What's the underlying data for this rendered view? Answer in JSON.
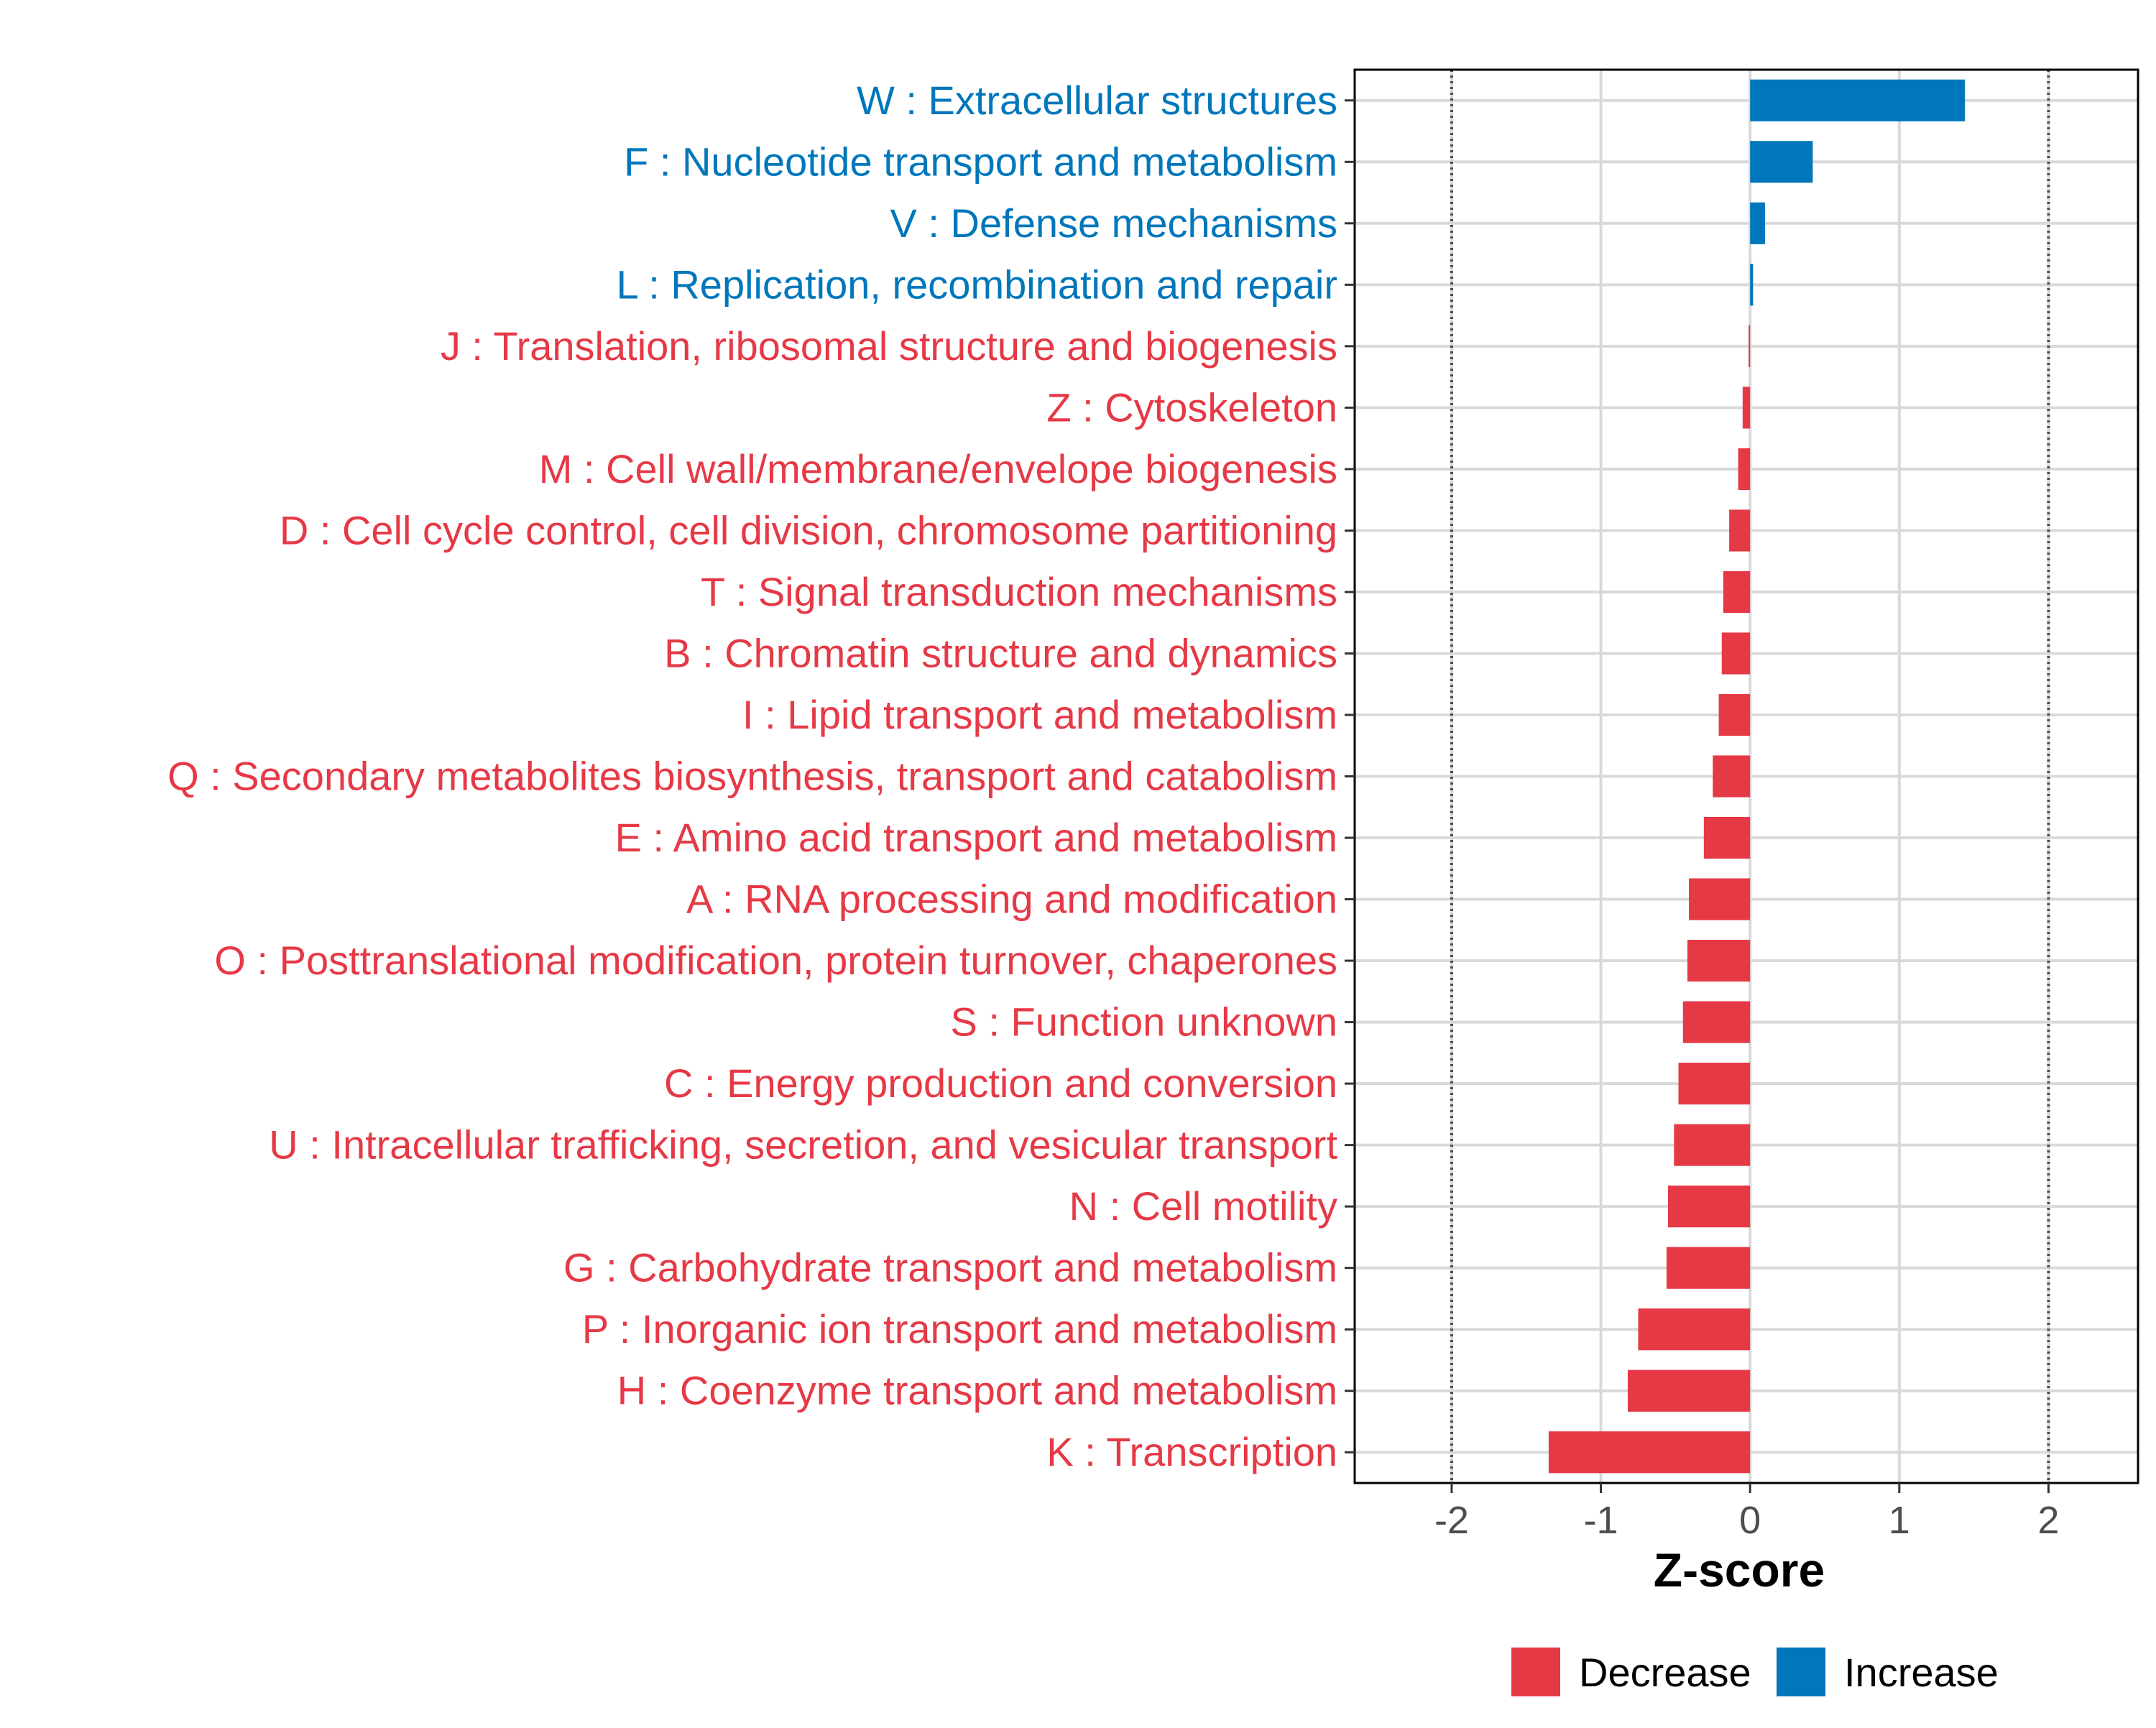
{
  "colors": {
    "decrease": "#E63946",
    "increase": "#0077BB",
    "grid": "#d9d9d9",
    "border": "#000000",
    "reference_line": "#4d4d4d",
    "tick_text": "#4d4d4d"
  },
  "chart_data": {
    "type": "bar",
    "orientation": "horizontal",
    "title": "",
    "xlabel": "Z-score",
    "ylabel": "",
    "xlim": [
      -2.65,
      2.6
    ],
    "xticks": [
      -2,
      -1,
      0,
      1,
      2
    ],
    "xtick_labels": [
      "-2",
      "-1",
      "0",
      "1",
      "2"
    ],
    "reference_lines": [
      -2,
      2
    ],
    "grid": true,
    "legend_position": "bottom",
    "categories": [
      "W : Extracellular structures",
      "F : Nucleotide transport and metabolism",
      "V : Defense mechanisms",
      "L : Replication, recombination and repair",
      "J : Translation, ribosomal structure and biogenesis",
      "Z : Cytoskeleton",
      "M : Cell wall/membrane/envelope biogenesis",
      "D : Cell cycle control, cell division, chromosome partitioning",
      "T : Signal transduction mechanisms",
      "B : Chromatin structure and dynamics",
      "I : Lipid transport and metabolism",
      "Q : Secondary metabolites biosynthesis, transport and catabolism",
      "E : Amino acid transport and metabolism",
      "A : RNA processing and modification",
      "O : Posttranslational modification, protein turnover, chaperones",
      "S : Function unknown",
      "C : Energy production and conversion",
      "U : Intracellular trafficking, secretion, and vesicular transport",
      "N : Cell motility",
      "G : Carbohydrate transport and metabolism",
      "P : Inorganic ion transport and metabolism",
      "H : Coenzyme transport and metabolism",
      "K : Transcription"
    ],
    "values": [
      1.44,
      0.42,
      0.1,
      0.02,
      -0.01,
      -0.05,
      -0.08,
      -0.14,
      -0.18,
      -0.19,
      -0.21,
      -0.25,
      -0.31,
      -0.41,
      -0.42,
      -0.45,
      -0.48,
      -0.51,
      -0.55,
      -0.56,
      -0.75,
      -0.82,
      -1.35
    ],
    "groups": [
      "Increase",
      "Increase",
      "Increase",
      "Increase",
      "Decrease",
      "Decrease",
      "Decrease",
      "Decrease",
      "Decrease",
      "Decrease",
      "Decrease",
      "Decrease",
      "Decrease",
      "Decrease",
      "Decrease",
      "Decrease",
      "Decrease",
      "Decrease",
      "Decrease",
      "Decrease",
      "Decrease",
      "Decrease",
      "Decrease"
    ],
    "legend": [
      {
        "name": "Decrease",
        "color": "#E63946"
      },
      {
        "name": "Increase",
        "color": "#0077BB"
      }
    ]
  }
}
